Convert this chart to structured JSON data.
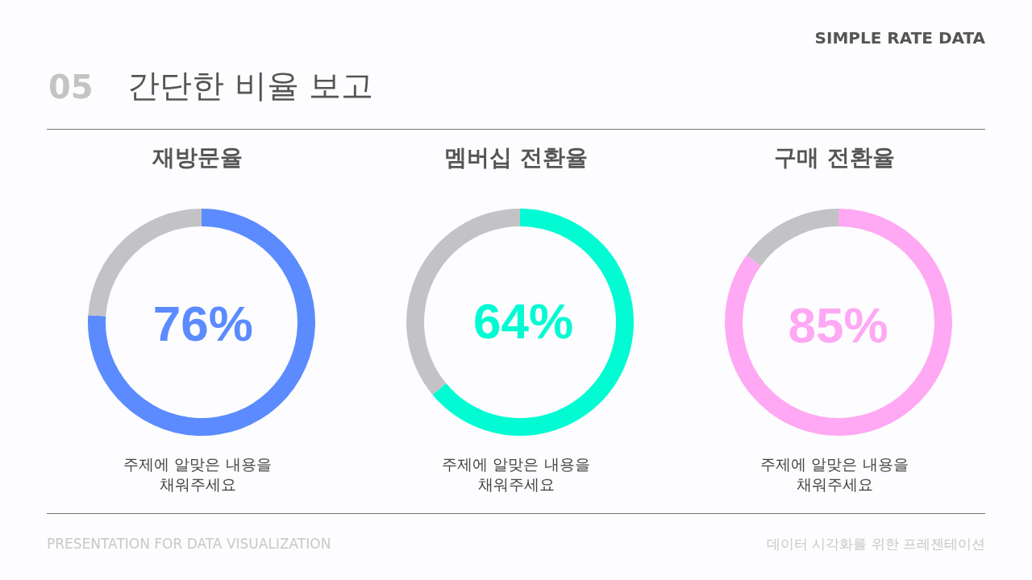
{
  "chart_data": [
    {
      "type": "other",
      "title": "간단한 비율 보고",
      "annotations": [
        "SIMPLE RATE DATA",
        "05"
      ]
    },
    {
      "type": "donut",
      "title": "재방문율",
      "categories": [
        null,
        null
      ],
      "values": [
        76,
        24
      ],
      "colors": [
        "#5b8bff",
        "#c3c3c6"
      ],
      "value_labels": [
        "76%",
        null
      ],
      "annotations": [
        "주제에 알맞은 내용을 채워주세요"
      ]
    },
    {
      "type": "donut",
      "title": "멤버십 전환율",
      "categories": [
        null,
        null
      ],
      "values": [
        64,
        36
      ],
      "colors": [
        "#03fbd3",
        "#c3c3c6"
      ],
      "value_labels": [
        "64%",
        null
      ],
      "annotations": [
        "주제에 알맞은 내용을 채워주세요"
      ]
    },
    {
      "type": "donut",
      "title": "구매 전환율",
      "categories": [
        null,
        null
      ],
      "values": [
        85,
        15
      ],
      "colors": [
        "#ffa8f3",
        "#c3c3c6"
      ],
      "value_labels": [
        "85%",
        null
      ],
      "annotations": [
        "주제에 알맞은 내용을 채워주세요"
      ]
    },
    {
      "type": "other",
      "annotations": [
        "PRESENTATION FOR DATA VISUALIZATION",
        "데이터 시각화를 위한 프레젠테이션"
      ]
    }
  ]
}
